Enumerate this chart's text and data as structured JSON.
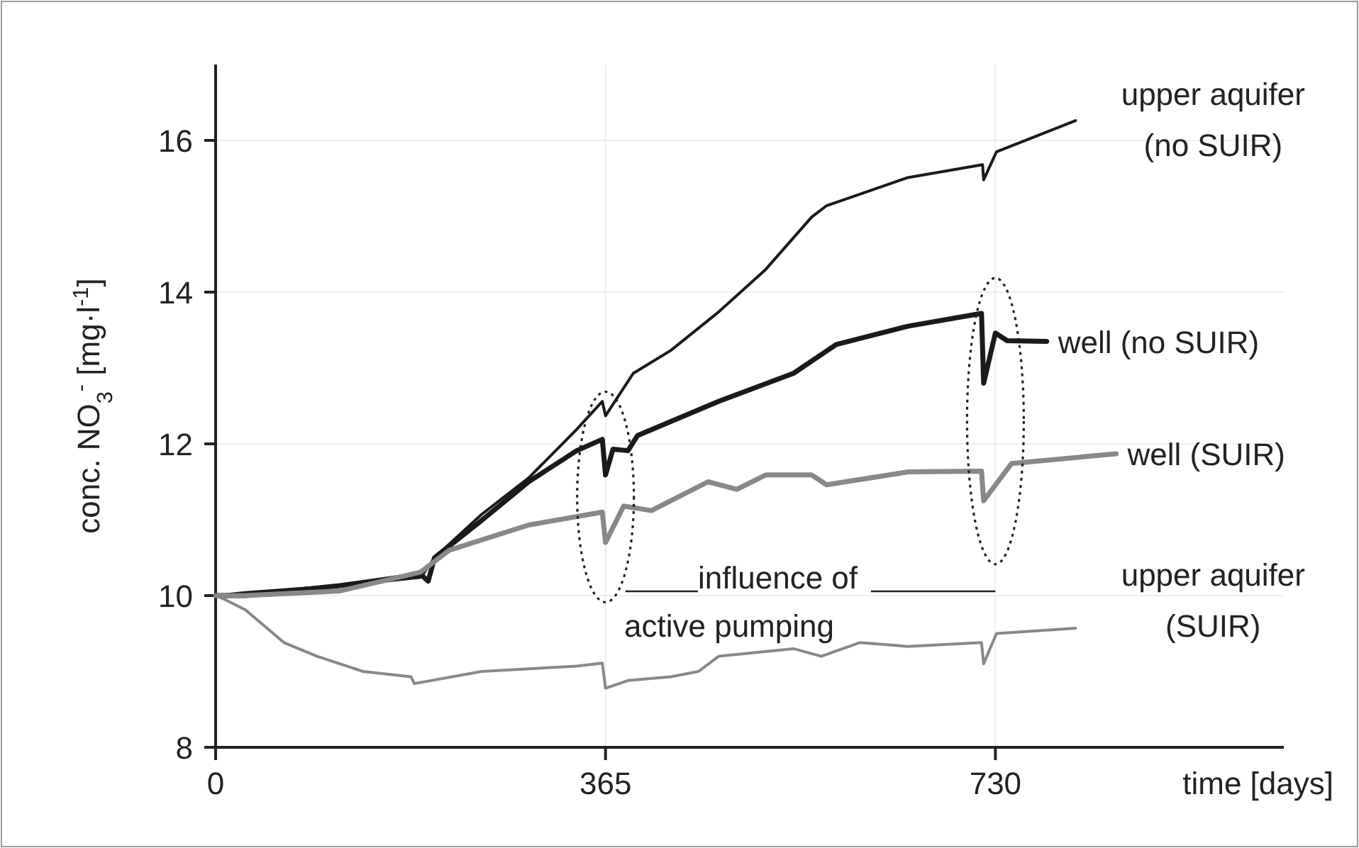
{
  "chart_data": {
    "type": "line",
    "xlabel": "time [days]",
    "ylabel": "conc. NO$_{3}$$^{-}$ [mg·l$^{-1}$]",
    "xlim": [
      0,
      1000
    ],
    "xticks": [
      0,
      365,
      730
    ],
    "ylim": [
      8,
      17
    ],
    "yticks": [
      8,
      10,
      12,
      14,
      16
    ],
    "grid": true,
    "marker": "none",
    "line_style": "solid",
    "annotations": [
      "influence of\nactive pumping"
    ],
    "series": [
      {
        "name": "upper aquifer (no SUIR)",
        "color": "#1a1a1a",
        "x": [
          0,
          28,
          133,
          192,
          205,
          249,
          293,
          338,
          362,
          365,
          391,
          426,
          471,
          515,
          558,
          572,
          648,
          718,
          719,
          731,
          805
        ],
        "values": [
          10,
          10.04,
          10.15,
          10.24,
          10.5,
          11.07,
          11.55,
          12.19,
          12.56,
          12.37,
          12.93,
          13.23,
          13.74,
          14.3,
          14.99,
          15.14,
          15.51,
          15.68,
          15.48,
          15.85,
          16.26
        ]
      },
      {
        "name": "well (no SUIR)",
        "color": "#1a1a1a",
        "x": [
          0,
          28,
          116,
          192,
          199,
          205,
          249,
          293,
          338,
          362,
          365,
          372,
          386,
          395,
          471,
          541,
          581,
          648,
          717,
          719,
          730,
          741,
          778
        ],
        "values": [
          10,
          10,
          10.13,
          10.28,
          10.19,
          10.5,
          10.99,
          11.5,
          11.91,
          12.06,
          11.59,
          11.93,
          11.91,
          12.11,
          12.56,
          12.93,
          13.31,
          13.55,
          13.72,
          12.8,
          13.46,
          13.36,
          13.35
        ]
      },
      {
        "name": "well (SUIR)",
        "color": "#888888",
        "x": [
          0,
          28,
          116,
          192,
          219,
          293,
          362,
          365,
          382,
          408,
          461,
          488,
          515,
          558,
          572,
          648,
          717,
          719,
          745,
          843
        ],
        "values": [
          10,
          10,
          10.06,
          10.31,
          10.6,
          10.93,
          11.1,
          10.7,
          11.18,
          11.12,
          11.5,
          11.4,
          11.59,
          11.59,
          11.46,
          11.63,
          11.64,
          11.25,
          11.74,
          11.87
        ]
      },
      {
        "name": "upper aquifer (SUIR)",
        "color": "#888888",
        "x": [
          0,
          10,
          28,
          64,
          95,
          138,
          183,
          186,
          249,
          338,
          362,
          365,
          386,
          426,
          452,
          471,
          541,
          567,
          603,
          648,
          717,
          719,
          731,
          805
        ],
        "values": [
          10,
          9.94,
          9.81,
          9.38,
          9.2,
          9.0,
          8.93,
          8.84,
          9.0,
          9.07,
          9.11,
          8.78,
          8.88,
          8.93,
          9.0,
          9.2,
          9.3,
          9.2,
          9.38,
          9.33,
          9.38,
          9.1,
          9.5,
          9.57
        ]
      }
    ]
  }
}
